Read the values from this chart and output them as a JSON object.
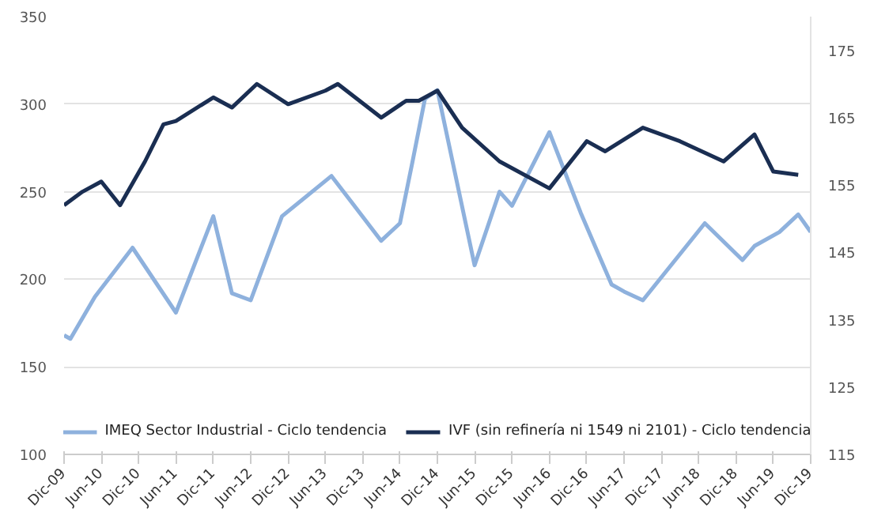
{
  "chart_data": {
    "type": "line",
    "series": [
      {
        "name": "IMEQ Sector Industrial - Ciclo tendencia",
        "color": "#8eb1dd",
        "x": [
          "2009-12",
          "2010-01",
          "2010-05",
          "2010-11",
          "2011-06",
          "2011-12",
          "2012-03",
          "2012-06",
          "2012-11",
          "2013-07",
          "2014-03",
          "2014-06",
          "2014-08",
          "2014-10",
          "2014-12",
          "2015-06",
          "2015-10",
          "2015-12",
          "2016-06",
          "2016-11",
          "2017-04",
          "2017-06",
          "2017-09",
          "2018-07",
          "2019-01",
          "2019-03",
          "2019-07",
          "2019-10",
          "2019-12"
        ],
        "values": [
          168,
          166,
          190,
          218,
          181,
          236,
          192,
          188,
          236,
          259,
          222,
          232,
          267,
          303,
          308,
          208,
          250,
          242,
          284,
          238,
          197,
          193,
          188,
          232,
          211,
          219,
          227,
          237,
          227
        ]
      },
      {
        "name": "IVF (sin refinería ni 1549 ni 2101) - Ciclo tendencia",
        "color": "#1a2e52",
        "axis": "y2",
        "x": [
          "2009-12",
          "2010-03",
          "2010-06",
          "2010-09",
          "2011-01",
          "2011-04",
          "2011-06",
          "2011-12",
          "2012-03",
          "2012-07",
          "2012-12",
          "2013-06",
          "2013-08",
          "2014-03",
          "2014-07",
          "2014-09",
          "2014-12",
          "2015-04",
          "2015-10",
          "2016-06",
          "2016-12",
          "2017-03",
          "2017-09",
          "2018-03",
          "2018-10",
          "2019-03",
          "2019-06",
          "2019-10"
        ],
        "values": [
          152,
          154,
          155.5,
          152,
          158.5,
          164,
          164.5,
          168,
          166.5,
          170,
          167,
          169,
          170,
          165,
          167.5,
          167.5,
          169,
          163.5,
          158.5,
          154.5,
          161.5,
          160,
          163.5,
          161.5,
          158.5,
          162.5,
          157,
          156.5
        ]
      }
    ],
    "xlim": [
      "2009-12",
      "2019-12"
    ],
    "xticks": [
      {
        "value": "2009-12",
        "label": "Dic-09"
      },
      {
        "value": "2010-06",
        "label": "Jun-10"
      },
      {
        "value": "2010-12",
        "label": "Dic-10"
      },
      {
        "value": "2011-06",
        "label": "Jun-11"
      },
      {
        "value": "2011-12",
        "label": "Dic-11"
      },
      {
        "value": "2012-06",
        "label": "Jun-12"
      },
      {
        "value": "2012-12",
        "label": "Dic-12"
      },
      {
        "value": "2013-06",
        "label": "Jun-13"
      },
      {
        "value": "2013-12",
        "label": "Dic-13"
      },
      {
        "value": "2014-06",
        "label": "Jun-14"
      },
      {
        "value": "2014-12",
        "label": "Dic-14"
      },
      {
        "value": "2015-06",
        "label": "Jun-15"
      },
      {
        "value": "2015-12",
        "label": "Dic-15"
      },
      {
        "value": "2016-06",
        "label": "Jun-16"
      },
      {
        "value": "2016-12",
        "label": "Dic-16"
      },
      {
        "value": "2017-06",
        "label": "Jun-17"
      },
      {
        "value": "2017-12",
        "label": "Dic-17"
      },
      {
        "value": "2018-06",
        "label": "Jun-18"
      },
      {
        "value": "2018-12",
        "label": "Dic-18"
      },
      {
        "value": "2019-06",
        "label": "Jun-19"
      },
      {
        "value": "2019-12",
        "label": "Dic-19"
      }
    ],
    "ylim": [
      100,
      350
    ],
    "yticks": [
      100,
      150,
      200,
      250,
      300,
      350
    ],
    "y2lim": [
      115,
      180
    ],
    "y2ticks": [
      115,
      125,
      135,
      145,
      155,
      165,
      175
    ],
    "grid": "y",
    "legend": "bottom",
    "marker": "none",
    "line_style": "solid"
  }
}
